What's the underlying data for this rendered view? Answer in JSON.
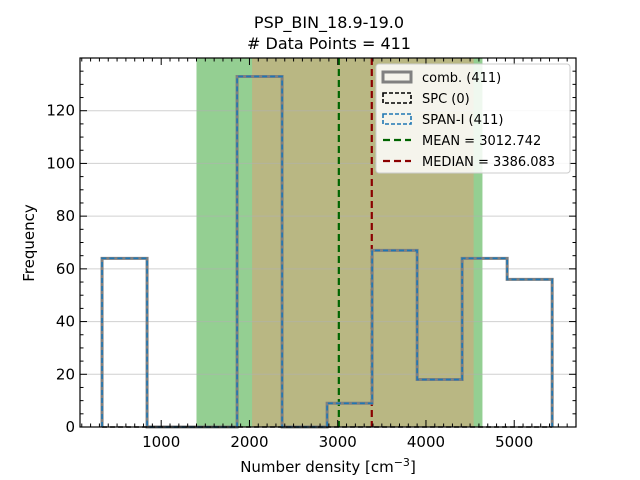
{
  "chart_data": {
    "type": "histogram",
    "title": "PSP_BIN_18.9-19.0",
    "subtitle": "# Data Points = 411",
    "xlabel": "Number density [cm",
    "xlabel_sup": "−3",
    "xlabel_end": "]",
    "ylabel": "Frequency",
    "xlim": [
      80,
      5700
    ],
    "ylim": [
      0,
      140
    ],
    "xticks": [
      1000,
      2000,
      3000,
      4000,
      5000
    ],
    "yticks": [
      0,
      20,
      40,
      60,
      80,
      100,
      120
    ],
    "grid": "y-major",
    "bin_edges": [
      330,
      840,
      1350,
      1860,
      2370,
      2880,
      3390,
      3900,
      4410,
      4920,
      5430
    ],
    "series": [
      {
        "name": "comb. (411)",
        "values": [
          64,
          0,
          0,
          133,
          0,
          9,
          67,
          18,
          64,
          56
        ],
        "color": "#808080",
        "style": "solid"
      },
      {
        "name": "SPC (0)",
        "values": [
          0,
          0,
          0,
          0,
          0,
          0,
          0,
          0,
          0,
          0
        ],
        "color": "#000000",
        "style": "dashed"
      },
      {
        "name": "SPAN-I (411)",
        "values": [
          64,
          0,
          0,
          133,
          0,
          9,
          67,
          18,
          64,
          56
        ],
        "color": "#1f77b4",
        "style": "dashed"
      }
    ],
    "bands": [
      {
        "x0": 1400,
        "x1": 4640,
        "color": "#4daf4a"
      },
      {
        "x0": 2030,
        "x1": 4540,
        "color": "#d2a679"
      }
    ],
    "lines": [
      {
        "name": "MEAN = 3012.742",
        "x": 3012.742,
        "color": "#006400"
      },
      {
        "name": "MEDIAN = 3386.083",
        "x": 3386.083,
        "color": "#8b0000"
      }
    ],
    "legend_position": "top-right"
  }
}
